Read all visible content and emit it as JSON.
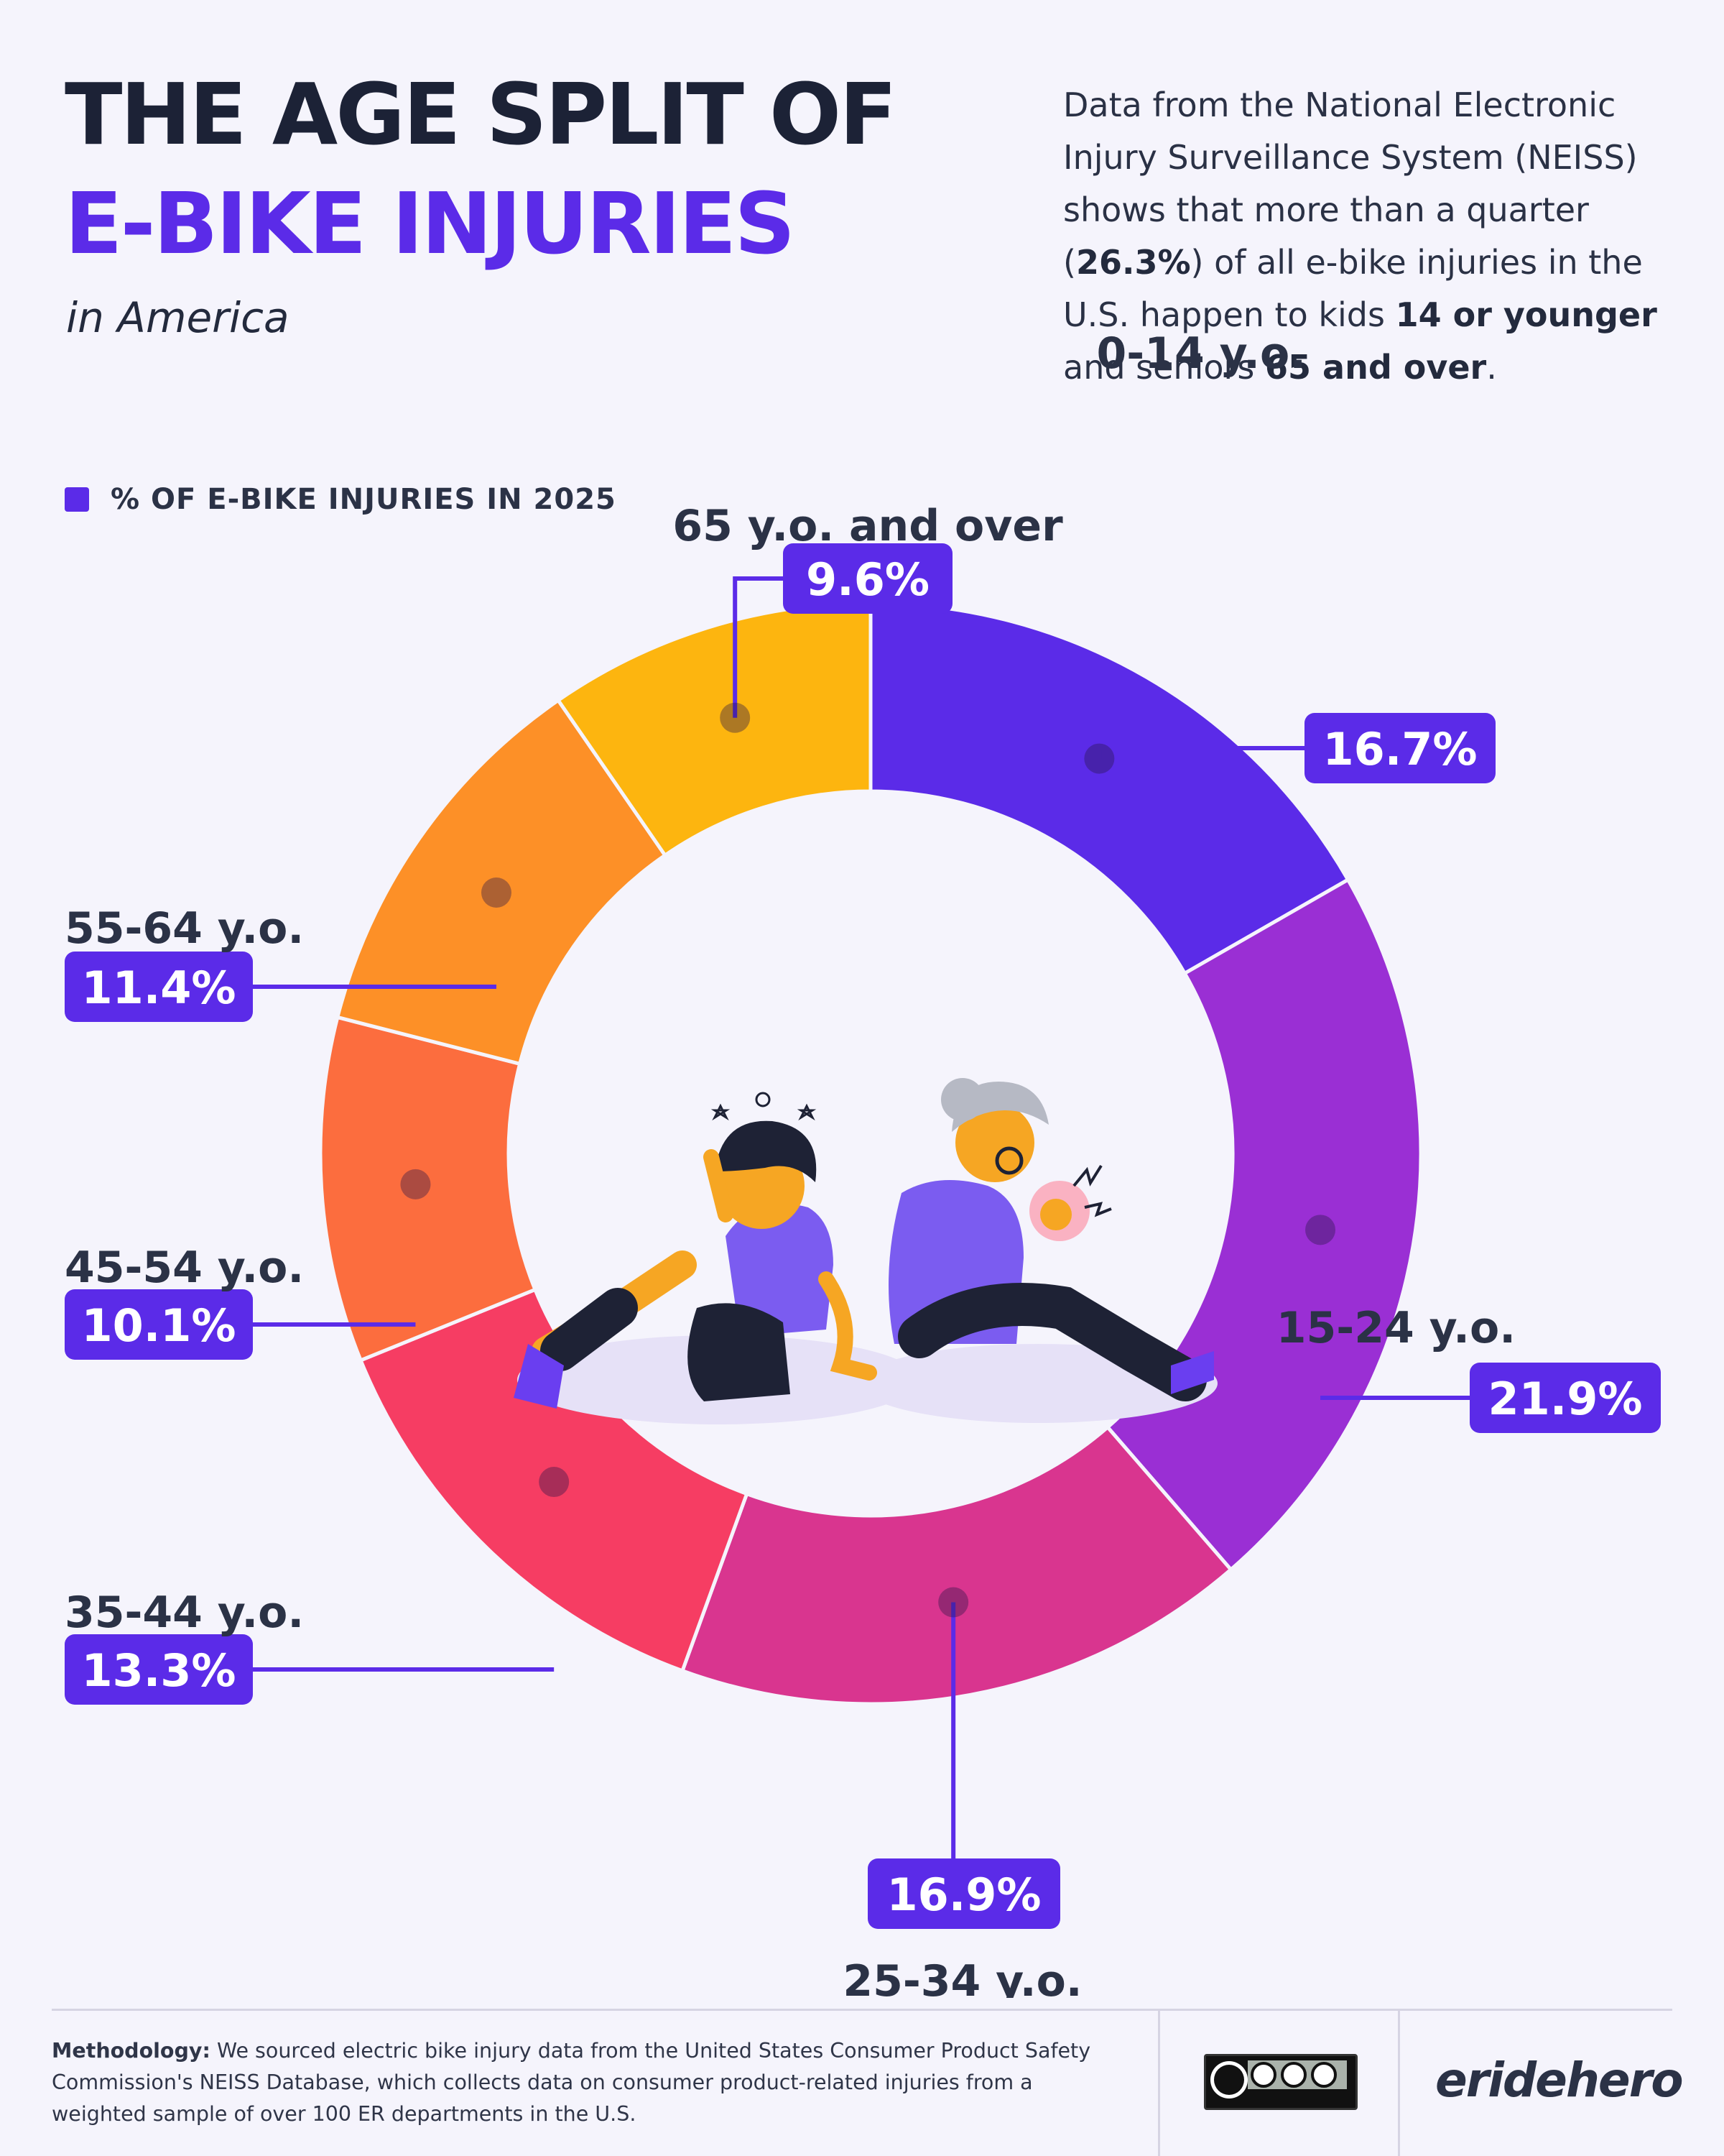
{
  "header": {
    "title_line1": "THE AGE SPLIT OF",
    "title_line2": "E-BIKE INJURIES",
    "subtitle": "in America"
  },
  "intro": {
    "t1": "Data from the National Electronic Injury Surveillance System (NEISS) shows that more than a quarter (",
    "b1": "26.3%",
    "t2": ") of all e-bike injuries in the U.S. happen to kids ",
    "b2": "14 or younger",
    "t3": " and seniors ",
    "b3": "65 and over",
    "t4": "."
  },
  "legend": {
    "label": "% OF E-BIKE INJURIES IN 2025"
  },
  "chart_data": {
    "type": "pie",
    "variant": "donut",
    "series_name": "% OF E-BIKE INJURIES IN 2025",
    "categories": [
      "0-14 y.o.",
      "15-24 y.o.",
      "25-34 y.o.",
      "35-44 y.o.",
      "45-54 y.o.",
      "55-64 y.o.",
      "65 y.o. and over"
    ],
    "values": [
      16.7,
      21.9,
      16.9,
      13.3,
      10.1,
      11.4,
      9.6
    ],
    "value_labels": [
      "16.7%",
      "21.9%",
      "16.9%",
      "13.3%",
      "10.1%",
      "11.4%",
      "9.6%"
    ],
    "colors": [
      "#5b2be8",
      "#9a2fd4",
      "#d9358f",
      "#f63d63",
      "#fc6d3e",
      "#fd9027",
      "#fdb50f"
    ],
    "label_color": "#5b2be8",
    "start": "12 o'clock, clockwise"
  },
  "footer": {
    "methodology_label": "Methodology:",
    "methodology_text": " We sourced electric bike injury data from the United States Consumer Product Safety Commission's NEISS Database, which collects data on consumer product-related injuries from a weighted sample of over 100 ER departments in the U.S.",
    "license_icon": "cc-by-nc-sa-icon",
    "brand": "eridehero"
  }
}
